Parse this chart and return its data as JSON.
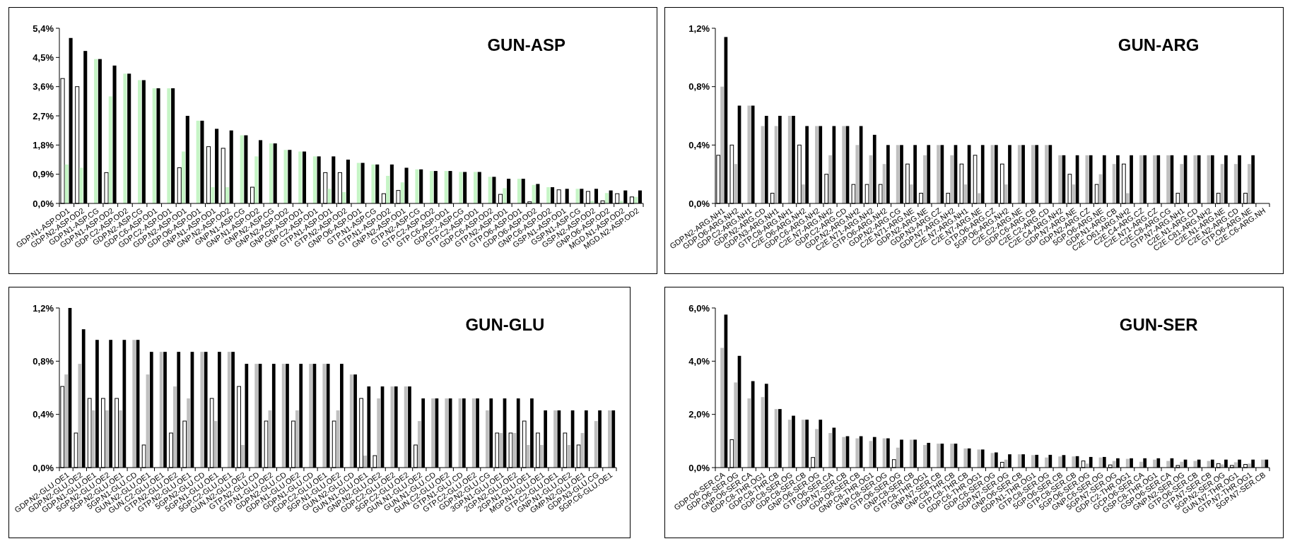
{
  "chart_data": [
    {
      "type": "bar",
      "title": "GUN-ASP",
      "categories": [
        "GDP.N1-ASP.OD1",
        "GDP.N2-ASP.OD2",
        "GDP.N1-ASP.CG",
        "GDP.N1-ASP.OD2",
        "GDP.C2-ASP.OD2",
        "GDP.N2-ASP.CG",
        "GDP.C6-ASP.OD1",
        "GDP.C2-ASP.OD1",
        "GDP.N2-ASP.OD1",
        "GDP.O6-ASP.OD1",
        "GNP.N1-ASP.OD1",
        "GNP.N2-ASP.OD2",
        "GNP.N1-ASP.CG",
        "GNP.N1-ASP.OD2",
        "GNP.N2-ASP.CG",
        "GNP.N2-ASP.OD2",
        "GNP.C6-ASP.OD1",
        "GNP.C2-ASP.OD1",
        "GTP.N1-ASP.OD1",
        "GTP.N2-ASP.OD2",
        "GNP.O6-ASP.OD1",
        "GTP.N1-ASP.CG",
        "GTP.N1-ASP.OD2",
        "GNP.N2-ASP.OD1",
        "GTP.N2-ASP.CG",
        "GTP.C2-ASP.OD2",
        "GTP.C6-ASP.OD1",
        "GDP.C2-ASP.CG",
        "GTP.C2-ASP.OD1",
        "GDP.C6-ASP.OD2",
        "GTP.N2-ASP.OD1",
        "GTP.O6-ASP.OD1",
        "GDP.O6-ASP.OD2",
        "GNP.C6-ASP.OD2",
        "GSP.N1-ASP.OD1",
        "GSP.N1-ASP.CG",
        "GSP.N2-ASP.OD2",
        "GNP.O6-ASP.OD2",
        "MGD.N1-ASP.OD2",
        "MGD.N2-ASP.OD2"
      ],
      "series": [
        {
          "color": "#ffffff",
          "values": [
            3.85,
            3.6,
            0,
            0.95,
            0,
            0,
            0,
            0,
            1.1,
            0,
            1.75,
            1.7,
            0,
            0.5,
            0,
            0,
            0,
            0,
            0.95,
            0.95,
            0,
            0,
            0.3,
            0.4,
            0,
            0,
            0,
            0,
            0,
            0,
            0.28,
            0,
            0.05,
            0,
            0.42,
            0,
            0.37,
            0.08,
            0.3,
            0.2
          ]
        },
        {
          "color": "#c6f5c6",
          "values": [
            1.2,
            1.1,
            4.45,
            3.3,
            4.0,
            3.8,
            3.55,
            3.55,
            1.6,
            2.55,
            0.5,
            0.5,
            2.1,
            1.45,
            1.85,
            1.65,
            1.6,
            1.45,
            0.45,
            0.35,
            1.25,
            1.2,
            0.85,
            0.65,
            1.05,
            1.0,
            1.0,
            0.97,
            0.97,
            0.82,
            0.47,
            0.76,
            0.57,
            0.5,
            null,
            0.45,
            0.08,
            0.32,
            0.08,
            0.2
          ]
        },
        {
          "color": "#000000",
          "values": [
            5.1,
            4.7,
            4.45,
            4.25,
            4.0,
            3.8,
            3.55,
            3.55,
            2.7,
            2.55,
            2.3,
            2.25,
            2.1,
            1.95,
            1.85,
            1.65,
            1.6,
            1.45,
            1.45,
            1.35,
            1.25,
            1.2,
            1.2,
            1.1,
            1.05,
            1.0,
            1.0,
            0.97,
            0.97,
            0.82,
            0.76,
            0.76,
            0.6,
            0.5,
            0.45,
            0.45,
            0.45,
            0.4,
            0.4,
            0.4
          ]
        }
      ],
      "ylim": [
        0,
        5.4
      ],
      "yticks": [
        {
          "value": 0,
          "label": "0,0%"
        },
        {
          "value": 0.9,
          "label": "0,9%"
        },
        {
          "value": 1.8,
          "label": "1,8%"
        },
        {
          "value": 2.7,
          "label": "2,7%"
        },
        {
          "value": 3.6,
          "label": "3,6%"
        },
        {
          "value": 4.5,
          "label": "4,5%"
        },
        {
          "value": 5.4,
          "label": "5,4%"
        }
      ]
    },
    {
      "type": "bar",
      "title": "GUN-ARG",
      "categories": [
        "GDP.N2-ARG.NH1",
        "GDP.O6-ARG.NH2",
        "GDP.C2-ARG.NH1",
        "GDP.N2-ARG.CD",
        "GDP.N3-ARG.NH1",
        "GTP.C8-ARG.NH1",
        "C2E.O6-ARG.NH2",
        "GDP.C6-ARG.NH2",
        "C2E.N7-ARG.NH2",
        "GDP.C2-ARG.CD",
        "GDP.N2-ARG.NH2",
        "C2E.N71-ARG.NH2",
        "GTP.O6-ARG.NH2",
        "GDP.N2-ARG.CG",
        "C2E.N71-ARG.NE",
        "GDP.N2-ARG.NE",
        "GDP.N3-ARG.CZ",
        "GDP.N7-ARG.NH2",
        "C2E.N7-ARG.NH1",
        "C2E.N7-ARG.NE",
        "GTP.O6-ARG.CZ",
        "5GP.O6-ARG.NH2",
        "C2E.C2-ARG.NE",
        "GDP.C6-ARG.CB",
        "C2E.C2-ARG.CD",
        "C2E.C4-ARG.NH2",
        "GDP.N7-ARG.NE",
        "GDP.N2-ARG.CZ",
        "5GP.O6-ARG.NE",
        "GDP.N1-ARG.CB",
        "C2E.O61-ARG.NH2",
        "C2E.C4-ARG.CZ",
        "C2E.N71-ARG.CZ",
        "C2E.C8-ARG.CG",
        "GTP.N7-ARG.NH1",
        "C2E.N1-ARG.CD",
        "C2E.C81-ARG.NH2",
        "C2E.N1-ARG.NE",
        "C2E.N2-ARG.CD",
        "GTP.O6-ARG.NE",
        "C2E.C6-ARG.NH"
      ],
      "series": [
        {
          "color": "#ffffff",
          "values": [
            0.33,
            0.4,
            0,
            0,
            0.07,
            0,
            0.4,
            0,
            0.2,
            0,
            0.13,
            0.13,
            0.13,
            0,
            0.27,
            0.07,
            0,
            0.07,
            0.27,
            0.33,
            0,
            0.27,
            0,
            0,
            0,
            0,
            0.2,
            0,
            0.13,
            0,
            0.27,
            0,
            0,
            0,
            0.07,
            0,
            0,
            0.07,
            0,
            0.07,
            null
          ]
        },
        {
          "color": "#bfbfbf",
          "values": [
            0.8,
            0.27,
            0.67,
            0.53,
            0.53,
            0.6,
            0.13,
            0.53,
            0.33,
            0.53,
            0.4,
            0.33,
            0.27,
            0.4,
            0.13,
            0.33,
            0.4,
            0.33,
            0.13,
            0.07,
            0.4,
            0.13,
            0.4,
            0.4,
            0.4,
            0.33,
            0.13,
            0.33,
            0.2,
            0.27,
            0.07,
            0.33,
            0.33,
            0.33,
            0.27,
            0.33,
            0.33,
            0.27,
            0.27,
            0.27,
            null
          ]
        },
        {
          "color": "#000000",
          "values": [
            1.14,
            0.67,
            0.67,
            0.6,
            0.6,
            0.6,
            0.53,
            0.53,
            0.53,
            0.53,
            0.53,
            0.47,
            0.4,
            0.4,
            0.4,
            0.4,
            0.4,
            0.4,
            0.4,
            0.4,
            0.4,
            0.4,
            0.4,
            0.4,
            0.4,
            0.33,
            0.33,
            0.33,
            0.33,
            0.33,
            0.33,
            0.33,
            0.33,
            0.33,
            0.33,
            0.33,
            0.33,
            0.33,
            0.33,
            0.33,
            null
          ]
        }
      ],
      "ylim": [
        0,
        1.2
      ],
      "yticks": [
        {
          "value": 0,
          "label": "0,0%"
        },
        {
          "value": 0.4,
          "label": "0,4%"
        },
        {
          "value": 0.8,
          "label": "0,8%"
        },
        {
          "value": 1.2,
          "label": "1,2%"
        }
      ]
    },
    {
      "type": "bar",
      "title": "GUN-GLU",
      "categories": [
        "GDP.N2-GLU.OE1",
        "GDP.N2-GLU.OE2",
        "GDP.N1-GLU.OE1",
        "5GP.N2-GLU.OE2",
        "5GP.N2-GLU.OE1",
        "5GP.N1-GLU.CD",
        "GUN.N2-GLU.OE1",
        "GUN.C2-GLU.OE1",
        "GTP.N2-GLU.OE2",
        "GTP.N2-GLU.OE1",
        "5GP.N2-GLU.CD",
        "5GP.N1-GLU.OE1",
        "5GP.C2-GLU.OE1",
        "GUN.N2-GLU.OE2",
        "GTP.N2-GLU.CD",
        "GTP.N1-GLU.OE2",
        "GDP.N2-GLU.CD",
        "GDP.N1-GLU.OE2",
        "GDP.N1-GLU.CD",
        "GDP.C2-GLU.OE1",
        "5GP.N1-GLU.OE2",
        "GUN.N2-GLU.CD",
        "GUN.N1-GLU.OE1",
        "GNP.N2-GLU.OE2",
        "GDP.C2-GLU.OE2",
        "5GP.C2-GLU.OE2",
        "GUN.N1-GLU.OE2",
        "GUN.N1-GLU.CD",
        "GUN.C2-GLU.OE2",
        "GTP.N1-GLU.CD",
        "GTP.C2-GLU.OE2",
        "GDP.N2-GLU.CG",
        "3GP.N1-GLU.OE1",
        "2GP.N2-GLU.OE2",
        "2GP.N1-GLU.OE1",
        "MGP.N1-GLU.OE1",
        "GTP.C2-GLU.OE1",
        "GNP.N1-GLU.OE2",
        "GMP.N2-GLU.OE1",
        "GDP.N3-GLU.CG",
        "5GP.C6-GLU.OE1"
      ],
      "series": [
        {
          "color": "#ffffff",
          "values": [
            0.61,
            0.26,
            0.52,
            0.52,
            0.52,
            0,
            0.17,
            0,
            0.26,
            0.35,
            0,
            0.52,
            0,
            0.61,
            0,
            0.35,
            0,
            0.35,
            0,
            0,
            0.35,
            0,
            0.52,
            0.09,
            0,
            0,
            0.17,
            0,
            0,
            0,
            0,
            0,
            0.26,
            0.26,
            0.35,
            0.26,
            0,
            0.26,
            0.17,
            0,
            0
          ]
        },
        {
          "color": "#bfbfbf",
          "values": [
            0.7,
            0.78,
            0.43,
            0.43,
            0.43,
            0.96,
            0.7,
            0.87,
            0.61,
            0.52,
            0.87,
            0.35,
            0.87,
            0.17,
            0.78,
            0.43,
            0.78,
            0.43,
            0.78,
            0.78,
            0.43,
            0.7,
            0.09,
            0.52,
            0.61,
            0.61,
            0.35,
            0.52,
            0.52,
            0.52,
            0.52,
            0.43,
            0.26,
            0.26,
            0.17,
            0.17,
            0.43,
            0.17,
            0.26,
            0.35,
            0.43
          ]
        },
        {
          "color": "#000000",
          "values": [
            1.2,
            1.04,
            0.96,
            0.96,
            0.96,
            0.96,
            0.87,
            0.87,
            0.87,
            0.87,
            0.87,
            0.87,
            0.87,
            0.78,
            0.78,
            0.78,
            0.78,
            0.78,
            0.78,
            0.78,
            0.78,
            0.7,
            0.61,
            0.61,
            0.61,
            0.61,
            0.52,
            0.52,
            0.52,
            0.52,
            0.52,
            0.52,
            0.52,
            0.52,
            0.52,
            0.43,
            0.43,
            0.43,
            0.43,
            0.43,
            0.43
          ]
        }
      ],
      "ylim": [
        0,
        1.2
      ],
      "yticks": [
        {
          "value": 0,
          "label": "0,0%"
        },
        {
          "value": 0.4,
          "label": "0,4%"
        },
        {
          "value": 0.8,
          "label": "0,8%"
        },
        {
          "value": 1.2,
          "label": "1,2%"
        }
      ]
    },
    {
      "type": "bar",
      "title": "GUN-SER",
      "categories": [
        "GDP.O6-SER.CA",
        "GDP.O6-SER.OG",
        "GNP.O6-SER.CA",
        "GDP.C8-THR.OG1",
        "GDP.C8-THR.CB",
        "GDP.C8-SER.OG",
        "GDP.C8-SER.CB",
        "GNP.O6-SER.OG",
        "GTP.O6-SER.CA",
        "GDP.N7-SER.CB",
        "GDP.O6-SER.CB",
        "GNP.C8-THR.OG1",
        "GNP.C8-SER.OG",
        "GTP.O6-SER.OG",
        "GNP.C8-SER.CB",
        "GTP.C8-THR.OG1",
        "GNP.N7-SER.CB",
        "GNP.C8-THR.CB",
        "GTP.C8-THR.CB",
        "GDP.C6-THR.OG1",
        "GDP.C6-SER.OG",
        "GDP.N7-SER.OG",
        "GNP.O6-SER.CB",
        "GDP.N1-THR.OG1",
        "GTP.C8-SER.OG",
        "5GP.O6-SER.CB",
        "GTP.C8-SER.CB",
        "5GP.O6-SER.OG",
        "GNP.C6-SER.OG",
        "5GP.N7-SER.OG",
        "GDP.C2-THR.OG1",
        "GCP.O6-SER.CA",
        "GSP.C8-THR.OG1",
        "GSP.O6-SER.CA",
        "GNP.N2-SER.OG",
        "GTP.O6-SER.CB",
        "GTP.N7-SER.CB",
        "5GP.N2-SER.OG",
        "GUN.N7-THR.OG1",
        "GTP.N7-THR.OG1",
        "5GP.N7-SER.CB"
      ],
      "series": [
        {
          "color": "#ffffff",
          "values": [
            0,
            1.05,
            0,
            0,
            0,
            0,
            0,
            0.38,
            0,
            0,
            0,
            0,
            0,
            0.3,
            0,
            0,
            0,
            0,
            0,
            0,
            0,
            0.2,
            0,
            0,
            0,
            0,
            0,
            0.25,
            0,
            0.1,
            0,
            0,
            0,
            0,
            0.08,
            0,
            0,
            0.15,
            0.08,
            0.12,
            0
          ]
        },
        {
          "color": "#bfbfbf",
          "values": [
            4.5,
            3.2,
            2.6,
            2.65,
            2.2,
            1.8,
            1.8,
            1.45,
            1.3,
            1.15,
            1.1,
            1.0,
            1.1,
            0.75,
            1.05,
            0.85,
            0.9,
            0.9,
            0.72,
            0.68,
            0.55,
            0.3,
            0.5,
            0.47,
            0.38,
            0.42,
            0.42,
            0.15,
            0.38,
            0.25,
            0.33,
            0.22,
            0.3,
            0.25,
            0.22,
            0.25,
            0.25,
            0.12,
            0.2,
            0.15,
            0.3
          ]
        },
        {
          "color": "#000000",
          "values": [
            5.75,
            4.2,
            3.25,
            3.15,
            2.2,
            1.95,
            1.8,
            1.8,
            1.5,
            1.18,
            1.18,
            1.15,
            1.1,
            1.05,
            1.05,
            0.93,
            0.9,
            0.9,
            0.72,
            0.68,
            0.57,
            0.5,
            0.5,
            0.48,
            0.48,
            0.47,
            0.43,
            0.4,
            0.4,
            0.35,
            0.35,
            0.35,
            0.35,
            0.35,
            0.3,
            0.3,
            0.3,
            0.3,
            0.3,
            0.3,
            0.3
          ]
        }
      ],
      "ylim": [
        0,
        6
      ],
      "yticks": [
        {
          "value": 0,
          "label": "0,0%"
        },
        {
          "value": 2,
          "label": "2,0%"
        },
        {
          "value": 4,
          "label": "4,0%"
        },
        {
          "value": 6,
          "label": "6,0%"
        }
      ]
    }
  ]
}
